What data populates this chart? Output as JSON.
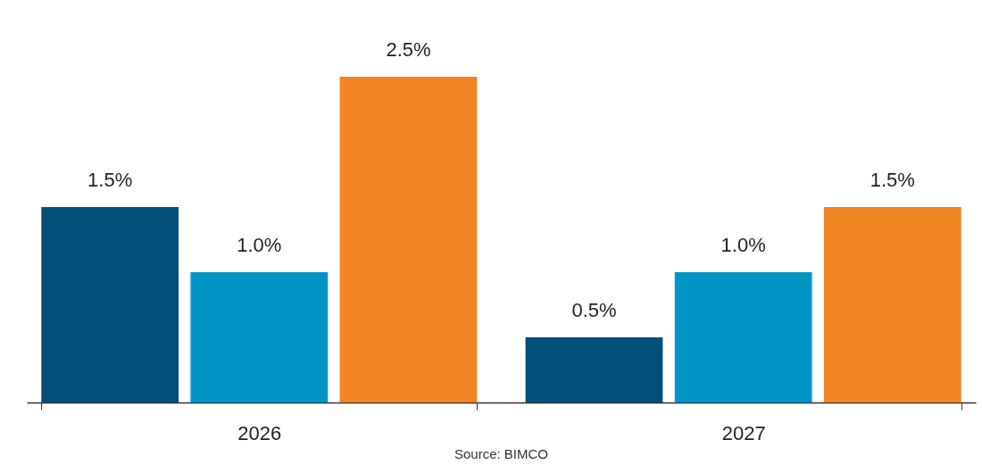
{
  "chart_data": {
    "type": "bar",
    "categories": [
      "2026",
      "2027"
    ],
    "series": [
      {
        "color": "#03507a",
        "values": [
          1.5,
          0.5
        ],
        "value_labels": [
          "1.5%",
          "0.5%"
        ]
      },
      {
        "color": "#0095c4",
        "values": [
          1.0,
          1.0
        ],
        "value_labels": [
          "1.0%",
          "1.0%"
        ]
      },
      {
        "color": "#f08522",
        "values": [
          2.5,
          1.5
        ],
        "value_labels": [
          "2.5%",
          "1.5%"
        ]
      }
    ],
    "annotations": [
      "Source: BIMCO"
    ],
    "tick_labels": "x"
  }
}
